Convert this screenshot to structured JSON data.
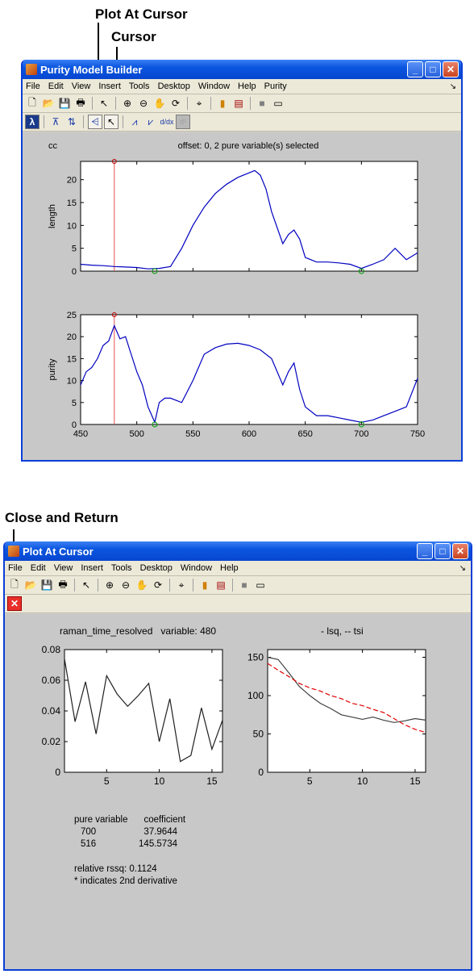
{
  "annotations": {
    "plot_at_cursor": "Plot At Cursor",
    "cursor": "Cursor",
    "close_and_return": "Close and Return"
  },
  "window1": {
    "title": "Purity Model Builder",
    "menus": [
      "File",
      "Edit",
      "View",
      "Insert",
      "Tools",
      "Desktop",
      "Window",
      "Help",
      "Purity"
    ],
    "header_left": "cc",
    "header_center": "offset: 0, 2 pure variable(s) selected"
  },
  "window2": {
    "title": "Plot At Cursor",
    "menus": [
      "File",
      "Edit",
      "View",
      "Insert",
      "Tools",
      "Desktop",
      "Window",
      "Help"
    ],
    "left_title": "raman_time_resolved   variable: 480",
    "right_title": "- lsq, -- tsi",
    "table_header": [
      "pure variable",
      "coefficient"
    ],
    "table_rows": [
      [
        "700",
        "37.9644"
      ],
      [
        "516",
        "145.5734"
      ]
    ],
    "rssq": "relative rssq: 0.1124",
    "note": "* indicates 2nd derivative"
  },
  "chart_data": [
    {
      "type": "line",
      "ylabel": "length",
      "xlim": [
        450,
        750
      ],
      "ylim": [
        0,
        24
      ],
      "yticks": [
        0,
        5,
        10,
        15,
        20
      ],
      "cursor_x": 480,
      "markers_x": [
        516,
        700
      ],
      "x": [
        450,
        460,
        470,
        480,
        490,
        500,
        510,
        520,
        530,
        540,
        550,
        560,
        570,
        580,
        590,
        600,
        605,
        610,
        615,
        620,
        630,
        635,
        640,
        645,
        650,
        660,
        670,
        680,
        690,
        700,
        710,
        720,
        730,
        740,
        750
      ],
      "y": [
        1.5,
        1.3,
        1.2,
        1.0,
        0.9,
        0.8,
        0.5,
        0.6,
        1.0,
        5,
        10,
        14,
        17,
        19,
        20.5,
        21.5,
        22,
        21,
        18,
        13,
        6,
        8,
        9,
        7,
        3,
        2,
        2,
        1.8,
        1.5,
        0.6,
        1.5,
        2.5,
        5,
        2.5,
        4
      ],
      "color": "#0000c0"
    },
    {
      "type": "line",
      "ylabel": "purity",
      "xlim": [
        450,
        750
      ],
      "ylim": [
        0,
        25
      ],
      "yticks": [
        0,
        5,
        10,
        15,
        20,
        25
      ],
      "xticks": [
        450,
        500,
        550,
        600,
        650,
        700,
        750
      ],
      "cursor_x": 480,
      "markers_x": [
        516,
        700
      ],
      "x": [
        450,
        455,
        460,
        465,
        470,
        475,
        480,
        485,
        490,
        495,
        500,
        505,
        510,
        516,
        520,
        525,
        530,
        540,
        550,
        560,
        570,
        580,
        590,
        600,
        610,
        620,
        630,
        635,
        640,
        645,
        650,
        660,
        670,
        680,
        690,
        700,
        710,
        720,
        730,
        740,
        750
      ],
      "y": [
        9,
        12,
        13,
        15,
        18,
        19,
        22.5,
        19.5,
        20,
        16,
        12,
        9,
        4,
        0.5,
        5,
        6,
        6,
        5,
        10,
        16,
        17.5,
        18.3,
        18.5,
        18,
        17,
        15,
        9,
        12,
        14,
        8,
        4,
        2,
        2,
        1.5,
        1,
        0.5,
        1,
        2,
        3,
        4,
        10.5
      ],
      "color": "#0000c0"
    },
    {
      "type": "line",
      "title": "raman_time_resolved   variable: 480",
      "xlim": [
        1,
        16
      ],
      "ylim": [
        0,
        0.08
      ],
      "xticks": [
        5,
        10,
        15
      ],
      "yticks": [
        0,
        0.02,
        0.04,
        0.06,
        0.08
      ],
      "x": [
        1,
        2,
        3,
        4,
        5,
        6,
        7,
        8,
        9,
        10,
        11,
        12,
        13,
        14,
        15,
        16
      ],
      "y": [
        0.074,
        0.033,
        0.059,
        0.025,
        0.063,
        0.051,
        0.043,
        0.05,
        0.058,
        0.02,
        0.048,
        0.007,
        0.011,
        0.042,
        0.015,
        0.034
      ],
      "color": "#202020"
    },
    {
      "type": "line",
      "title": "- lsq, -- tsi",
      "xlim": [
        1,
        16
      ],
      "ylim": [
        0,
        160
      ],
      "xticks": [
        5,
        10,
        15
      ],
      "yticks": [
        0,
        50,
        100,
        150
      ],
      "series": [
        {
          "name": "lsq",
          "x": [
            1,
            2,
            3,
            4,
            5,
            6,
            7,
            8,
            9,
            10,
            11,
            12,
            13,
            14,
            15,
            16
          ],
          "y": [
            150,
            147,
            130,
            112,
            100,
            90,
            83,
            75,
            72,
            69,
            72,
            68,
            65,
            67,
            70,
            68
          ],
          "color": "#404040",
          "dash": ""
        },
        {
          "name": "tsi",
          "x": [
            1,
            2,
            3,
            4,
            5,
            6,
            7,
            8,
            9,
            10,
            11,
            12,
            13,
            14,
            15,
            16
          ],
          "y": [
            142,
            133,
            125,
            116,
            110,
            106,
            100,
            96,
            90,
            87,
            82,
            78,
            70,
            62,
            56,
            52
          ],
          "color": "#e00000",
          "dash": "6,3"
        }
      ]
    }
  ]
}
